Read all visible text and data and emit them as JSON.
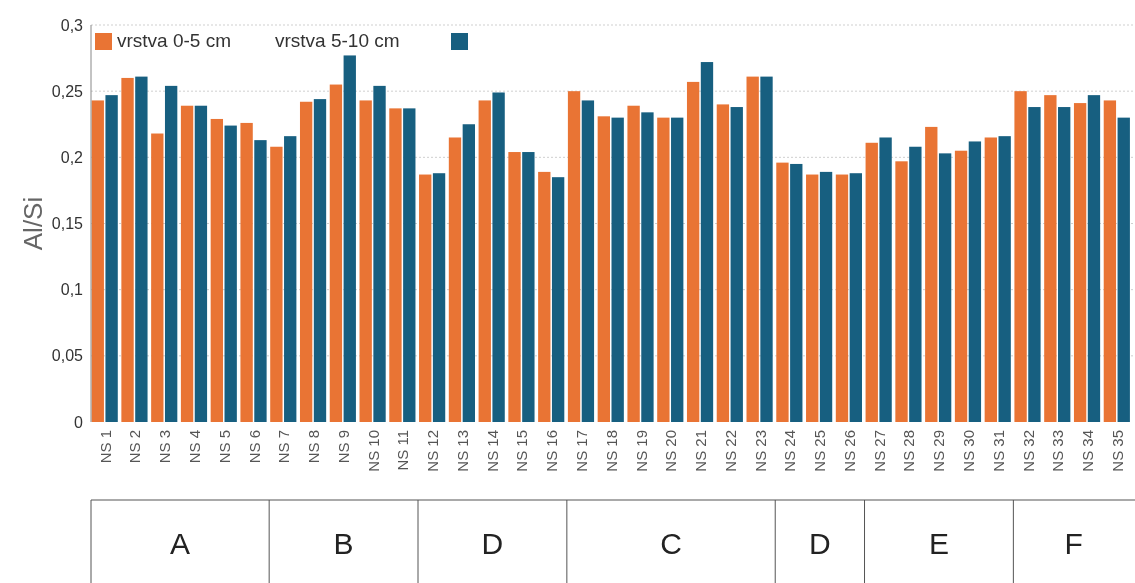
{
  "chart_data": {
    "type": "bar",
    "ylabel": "Al/Si",
    "categories": [
      "NS 1",
      "NS 2",
      "NS 3",
      "NS 4",
      "NS 5",
      "NS 6",
      "NS 7",
      "NS 8",
      "NS 9",
      "NS 10",
      "NS 11",
      "NS 12",
      "NS 13",
      "NS 14",
      "NS 15",
      "NS 16",
      "NS 17",
      "NS 18",
      "NS 19",
      "NS 20",
      "NS 21",
      "NS 22",
      "NS 23",
      "NS 24",
      "NS 25",
      "NS 26",
      "NS 27",
      "NS 28",
      "NS 29",
      "NS 30",
      "NS 31",
      "NS 32",
      "NS 33",
      "NS 34",
      "NS 35"
    ],
    "series": [
      {
        "name": "vrstva 0-5 cm",
        "color": "#e97434",
        "values": [
          0.243,
          0.26,
          0.218,
          0.239,
          0.229,
          0.226,
          0.208,
          0.242,
          0.255,
          0.243,
          0.237,
          0.187,
          0.215,
          0.243,
          0.204,
          0.189,
          0.25,
          0.231,
          0.239,
          0.23,
          0.257,
          0.24,
          0.261,
          0.196,
          0.187,
          0.187,
          0.211,
          0.197,
          0.223,
          0.205,
          0.215,
          0.25,
          0.247,
          0.241,
          0.243
        ]
      },
      {
        "name": "vrstva 5-10 cm",
        "color": "#175f80",
        "values": [
          0.247,
          0.261,
          0.254,
          0.239,
          0.224,
          0.213,
          0.216,
          0.244,
          0.277,
          0.254,
          0.237,
          0.188,
          0.225,
          0.249,
          0.204,
          0.185,
          0.243,
          0.23,
          0.234,
          0.23,
          0.272,
          0.238,
          0.261,
          0.195,
          0.189,
          0.188,
          0.215,
          0.208,
          0.203,
          0.212,
          0.216,
          0.238,
          0.238,
          0.247,
          0.23
        ]
      }
    ],
    "ylim": [
      0,
      0.3
    ],
    "yticks": [
      0,
      {
        "value": 0.05,
        "label": "0,05"
      },
      {
        "value": 0.1,
        "label": "0,1"
      },
      {
        "value": 0.15,
        "label": "0,15"
      },
      {
        "value": 0.2,
        "label": "0,2"
      },
      {
        "value": 0.25,
        "label": "0,25"
      },
      {
        "value": 0.3,
        "label": "0,3"
      }
    ],
    "grid": "y",
    "legend": "top left",
    "annotations": [
      "A",
      "B",
      "D",
      "C",
      "D",
      "E",
      "F"
    ]
  }
}
